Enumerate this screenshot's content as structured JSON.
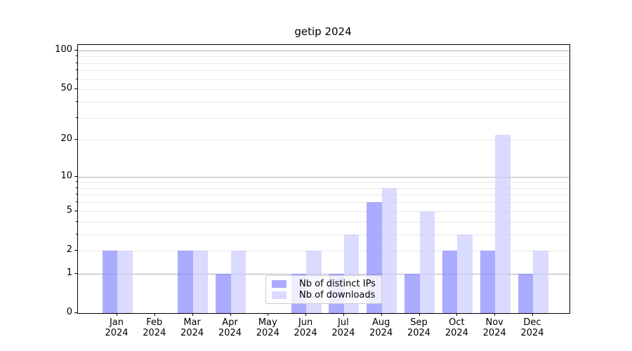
{
  "title": "getip 2024",
  "legend": {
    "items": [
      {
        "label": "Nb of distinct IPs"
      },
      {
        "label": "Nb of downloads"
      }
    ]
  },
  "colors": {
    "distinct_ips_bar": "rgba(136,136,255,0.7)",
    "downloads_bar": "rgba(204,204,255,0.7)",
    "major_gridline": "#b2b2b2",
    "minor_gridline": "#e8e8e8"
  },
  "chart_data": {
    "type": "bar",
    "title": "getip 2024",
    "categories": [
      "Jan 2024",
      "Feb 2024",
      "Mar 2024",
      "Apr 2024",
      "May 2024",
      "Jun 2024",
      "Jul 2024",
      "Aug 2024",
      "Sep 2024",
      "Oct 2024",
      "Nov 2024",
      "Dec 2024"
    ],
    "series": [
      {
        "name": "Nb of distinct IPs",
        "color": "rgba(136,136,255,0.7)",
        "values": [
          2,
          0,
          2,
          1,
          0,
          1,
          1,
          6,
          1,
          2,
          2,
          1
        ]
      },
      {
        "name": "Nb of downloads",
        "color": "rgba(204,204,255,0.7)",
        "values": [
          2,
          0,
          2,
          2,
          0,
          2,
          3,
          8,
          5,
          3,
          22,
          2
        ]
      }
    ],
    "xlabel": "",
    "ylabel": "",
    "yscale": "log1p",
    "ylim": [
      0,
      110
    ],
    "y_tick_values": [
      0,
      1,
      2,
      5,
      10,
      20,
      50,
      100
    ],
    "y_major_gridlines": [
      1,
      10,
      100
    ],
    "y_minor_gridlines": [
      2,
      3,
      4,
      5,
      6,
      7,
      8,
      9,
      20,
      30,
      40,
      50,
      60,
      70,
      80,
      90
    ],
    "grid": true,
    "legend_position": "lower center (inside axes)",
    "bar_group_width": 0.8
  }
}
